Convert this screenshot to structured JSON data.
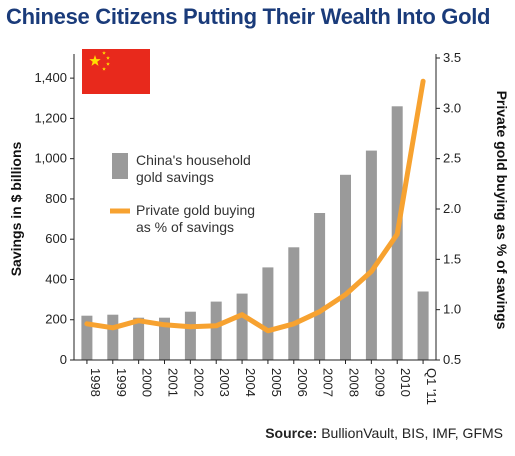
{
  "colors": {
    "title": "#1a3b7a",
    "bar": "#9a9a9a",
    "line": "#f7a230",
    "flag_red": "#e8291c",
    "flag_star": "#ffde00"
  },
  "title": "Chinese Citizens Putting Their Wealth Into Gold",
  "source": {
    "label": "Source:",
    "text": "BullionVault, BIS, IMF, GFMS"
  },
  "flag": {
    "icon": "china-flag"
  },
  "chart_data": {
    "type": "bar",
    "title": "Chinese Citizens Putting Their Wealth Into Gold",
    "categories": [
      "1998",
      "1999",
      "2000",
      "2001",
      "2002",
      "2003",
      "2004",
      "2005",
      "2006",
      "2007",
      "2008",
      "2009",
      "2010",
      "Q1 '11"
    ],
    "series": [
      {
        "name": "China's household gold savings",
        "type": "bar",
        "axis": "left",
        "values": [
          220,
          225,
          210,
          210,
          240,
          290,
          330,
          460,
          560,
          730,
          920,
          1040,
          1260,
          340
        ]
      },
      {
        "name": "Private gold buying as % of savings",
        "type": "line",
        "axis": "right",
        "values": [
          0.86,
          0.82,
          0.89,
          0.85,
          0.83,
          0.84,
          0.95,
          0.79,
          0.86,
          0.98,
          1.15,
          1.38,
          1.75,
          3.27
        ]
      }
    ],
    "ylabel": "Savings in $ billions",
    "y2label": "Private gold buying as % of savings",
    "ylim": [
      0,
      1500
    ],
    "y2lim": [
      0.5,
      3.5
    ],
    "yticks": [
      "0",
      "200",
      "400",
      "600",
      "800",
      "1,000",
      "1,200",
      "1,400"
    ],
    "y2ticks": [
      "0.5",
      "1.0",
      "1.5",
      "2.0",
      "2.5",
      "3.0",
      "3.5"
    ],
    "legend": {
      "position": "center-left",
      "entries": [
        "China's household\ngold savings",
        "Private gold buying\nas % of savings"
      ]
    },
    "grid": false
  }
}
